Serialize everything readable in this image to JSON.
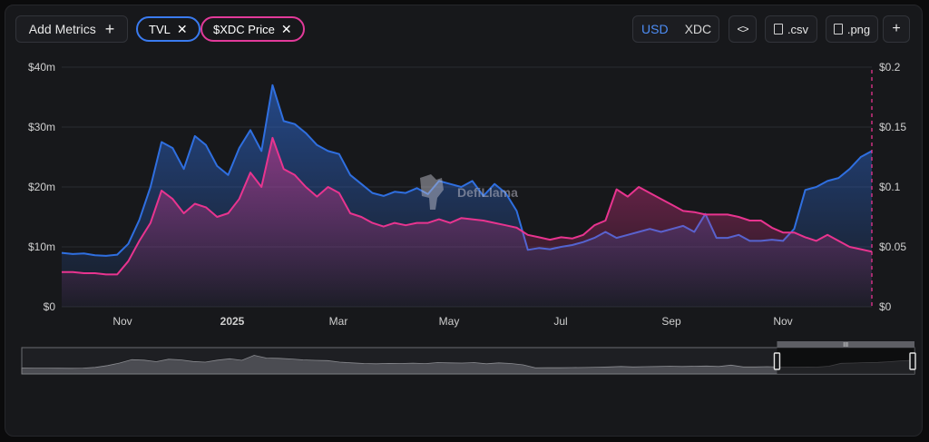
{
  "toolbar": {
    "add_metrics_label": "Add Metrics",
    "add_icon": "plus-icon",
    "pills": [
      {
        "label": "TVL",
        "color": "#3a7bf0"
      },
      {
        "label": "$XDC Price",
        "color": "#e23a9a"
      }
    ],
    "close_icon": "close-icon",
    "currency": {
      "active": "USD",
      "inactive": "XDC"
    },
    "embed_icon": "code-icon",
    "csv_label": ".csv",
    "png_label": ".png",
    "more_icon": "plus-icon"
  },
  "chart_data": {
    "type": "area",
    "x_ticks": [
      "Nov",
      "2025",
      "Mar",
      "May",
      "Jul",
      "Sep",
      "Nov"
    ],
    "y_left_ticks": [
      "$0",
      "$10m",
      "$20m",
      "$30m",
      "$40m"
    ],
    "y_right_ticks": [
      "$0",
      "$0.05",
      "$0.1",
      "$0.15",
      "$0.2"
    ],
    "y_left_lim": [
      0,
      40
    ],
    "y_right_lim": [
      0,
      0.2
    ],
    "watermark": "DefiLlama",
    "series": [
      {
        "name": "TVL",
        "axis": "left",
        "unit": "$m",
        "color": "#2f6fe0",
        "values": [
          9.0,
          8.8,
          8.9,
          8.6,
          8.5,
          8.7,
          10.5,
          14.5,
          20.0,
          27.5,
          26.5,
          23.0,
          28.5,
          27.0,
          23.5,
          22.0,
          26.5,
          29.5,
          26.0,
          37.0,
          31.0,
          30.5,
          29.0,
          27.0,
          26.0,
          25.5,
          22.0,
          20.5,
          19.0,
          18.5,
          19.2,
          19.0,
          19.8,
          18.8,
          21.0,
          20.5,
          20.0,
          21.0,
          18.5,
          20.5,
          19.0,
          16.0,
          9.5,
          9.8,
          9.6,
          10.0,
          10.3,
          10.8,
          11.5,
          12.5,
          11.5,
          12.0,
          12.5,
          13.0,
          12.5,
          13.0,
          13.5,
          12.5,
          15.5,
          11.5,
          11.5,
          12.0,
          11.0,
          11.0,
          11.2,
          11.0,
          13.0,
          19.5,
          20.0,
          21.0,
          21.5,
          23.0,
          25.0,
          26.0
        ]
      },
      {
        "name": "$XDC Price",
        "axis": "right",
        "unit": "$",
        "color": "#e8348f",
        "values": [
          0.029,
          0.029,
          0.028,
          0.028,
          0.027,
          0.027,
          0.038,
          0.055,
          0.07,
          0.097,
          0.09,
          0.078,
          0.086,
          0.083,
          0.075,
          0.078,
          0.09,
          0.112,
          0.1,
          0.141,
          0.115,
          0.11,
          0.1,
          0.092,
          0.1,
          0.095,
          0.078,
          0.075,
          0.07,
          0.067,
          0.07,
          0.068,
          0.07,
          0.07,
          0.073,
          0.07,
          0.074,
          0.073,
          0.072,
          0.07,
          0.068,
          0.066,
          0.06,
          0.058,
          0.056,
          0.058,
          0.057,
          0.06,
          0.068,
          0.072,
          0.098,
          0.092,
          0.1,
          0.095,
          0.09,
          0.085,
          0.08,
          0.079,
          0.077,
          0.077,
          0.077,
          0.075,
          0.072,
          0.072,
          0.066,
          0.062,
          0.062,
          0.058,
          0.055,
          0.06,
          0.055,
          0.05,
          0.048,
          0.046
        ]
      }
    ],
    "brush": {
      "start": 0.846,
      "end": 1.0
    }
  }
}
